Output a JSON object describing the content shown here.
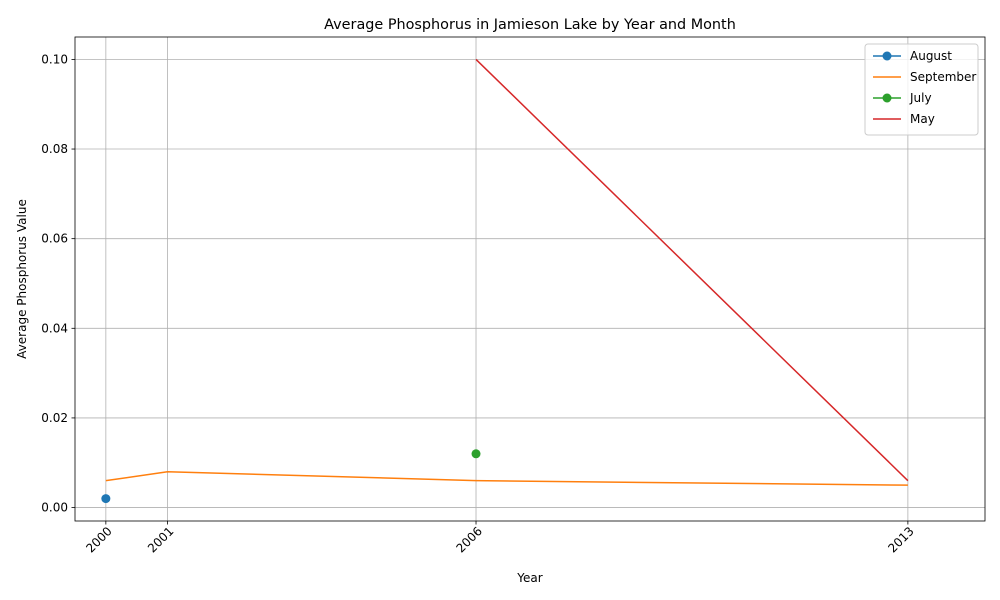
{
  "chart_data": {
    "type": "line",
    "title": "Average Phosphorus in Jamieson Lake by Year and Month",
    "xlabel": "Year",
    "ylabel": "Average Phosphorus Value",
    "xlim": [
      1999.5,
      2014.25
    ],
    "ylim": [
      -0.003,
      0.105
    ],
    "x_ticks": [
      2000,
      2001,
      2006,
      2013
    ],
    "y_ticks": [
      0.0,
      0.02,
      0.04,
      0.06,
      0.08,
      0.1
    ],
    "y_tick_labels": [
      "0.00",
      "0.02",
      "0.04",
      "0.06",
      "0.08",
      "0.10"
    ],
    "grid": true,
    "legend_position": "top-right",
    "series": [
      {
        "name": "August",
        "color": "#1f77b4",
        "marker": true,
        "points": [
          [
            2000,
            0.002
          ]
        ]
      },
      {
        "name": "September",
        "color": "#ff7f0e",
        "marker": false,
        "points": [
          [
            2000,
            0.006
          ],
          [
            2001,
            0.008
          ],
          [
            2006,
            0.006
          ],
          [
            2013,
            0.005
          ]
        ]
      },
      {
        "name": "July",
        "color": "#2ca02c",
        "marker": true,
        "points": [
          [
            2006,
            0.012
          ]
        ]
      },
      {
        "name": "May",
        "color": "#d62728",
        "marker": false,
        "points": [
          [
            2006,
            0.1
          ],
          [
            2013,
            0.006
          ]
        ]
      }
    ]
  }
}
